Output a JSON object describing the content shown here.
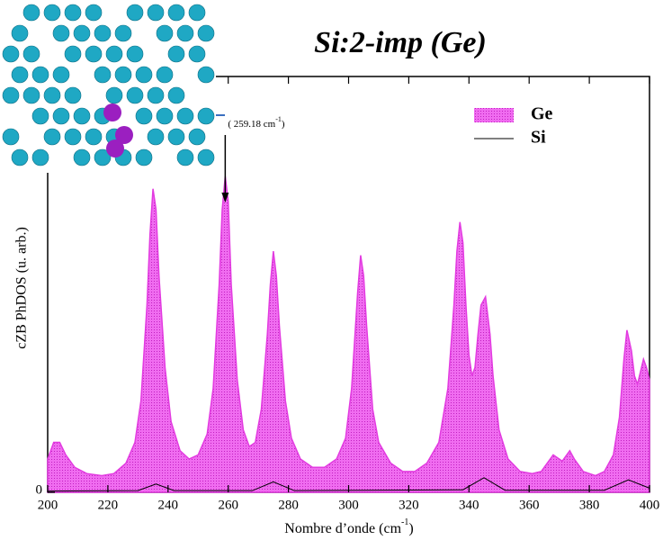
{
  "chart_data": {
    "type": "area",
    "title": "Si:2-imp (Ge)",
    "xlabel": [
      "Nombre d’onde (cm",
      "-1",
      ")"
    ],
    "ylabel": "cZB PhDOS (u. arb.)",
    "annotation": {
      "text": [
        "( 259.18 cm",
        "-1",
        ")"
      ],
      "x": 259
    },
    "xlim": [
      200,
      400
    ],
    "xticks": [
      200,
      220,
      240,
      260,
      280,
      300,
      320,
      340,
      360,
      380,
      400
    ],
    "ylim": [
      0,
      1
    ],
    "yticks": [
      0
    ],
    "legend": "upper right",
    "series": [
      {
        "name": "Ge",
        "color": "#e23be0",
        "fill": true,
        "x": [
          200,
          202,
          204,
          206,
          209,
          213,
          218,
          222,
          226,
          229,
          231,
          233,
          234,
          235,
          236,
          237,
          239,
          241,
          244,
          247,
          250,
          253,
          255,
          257,
          258,
          259,
          260,
          261,
          263,
          265,
          267,
          269,
          271,
          273,
          274,
          275,
          276,
          277,
          279,
          281,
          284,
          288,
          292,
          296,
          299,
          301,
          303,
          304,
          305,
          306,
          308,
          310,
          314,
          318,
          322,
          326,
          330,
          333,
          335,
          336,
          337,
          338,
          339,
          340,
          341,
          342,
          343,
          344,
          345.5,
          347,
          348,
          350,
          353,
          357,
          361,
          364,
          366,
          368,
          370,
          371,
          373.5,
          375,
          378,
          382,
          385,
          388,
          390,
          391.5,
          392.5,
          394,
          395,
          396,
          397,
          398,
          399,
          400
        ],
        "values": [
          0.08,
          0.12,
          0.12,
          0.09,
          0.06,
          0.045,
          0.04,
          0.045,
          0.07,
          0.12,
          0.22,
          0.45,
          0.62,
          0.73,
          0.68,
          0.52,
          0.3,
          0.17,
          0.1,
          0.08,
          0.09,
          0.14,
          0.25,
          0.5,
          0.68,
          0.76,
          0.7,
          0.5,
          0.27,
          0.15,
          0.11,
          0.12,
          0.2,
          0.38,
          0.5,
          0.58,
          0.52,
          0.4,
          0.22,
          0.13,
          0.08,
          0.06,
          0.06,
          0.08,
          0.13,
          0.25,
          0.48,
          0.57,
          0.52,
          0.4,
          0.2,
          0.12,
          0.07,
          0.05,
          0.05,
          0.07,
          0.12,
          0.25,
          0.45,
          0.58,
          0.65,
          0.6,
          0.45,
          0.33,
          0.28,
          0.3,
          0.38,
          0.45,
          0.47,
          0.38,
          0.28,
          0.15,
          0.08,
          0.05,
          0.045,
          0.05,
          0.07,
          0.09,
          0.08,
          0.075,
          0.1,
          0.08,
          0.05,
          0.04,
          0.05,
          0.09,
          0.18,
          0.32,
          0.39,
          0.34,
          0.28,
          0.26,
          0.29,
          0.32,
          0.3,
          0.27
        ]
      },
      {
        "name": "Si",
        "color": "#000000",
        "fill": false,
        "x": [
          200,
          230,
          236,
          242,
          268,
          275,
          282,
          338,
          345,
          352,
          385,
          393,
          400
        ],
        "values": [
          0.003,
          0.004,
          0.02,
          0.004,
          0.004,
          0.025,
          0.004,
          0.006,
          0.035,
          0.005,
          0.005,
          0.03,
          0.01
        ]
      }
    ]
  }
}
